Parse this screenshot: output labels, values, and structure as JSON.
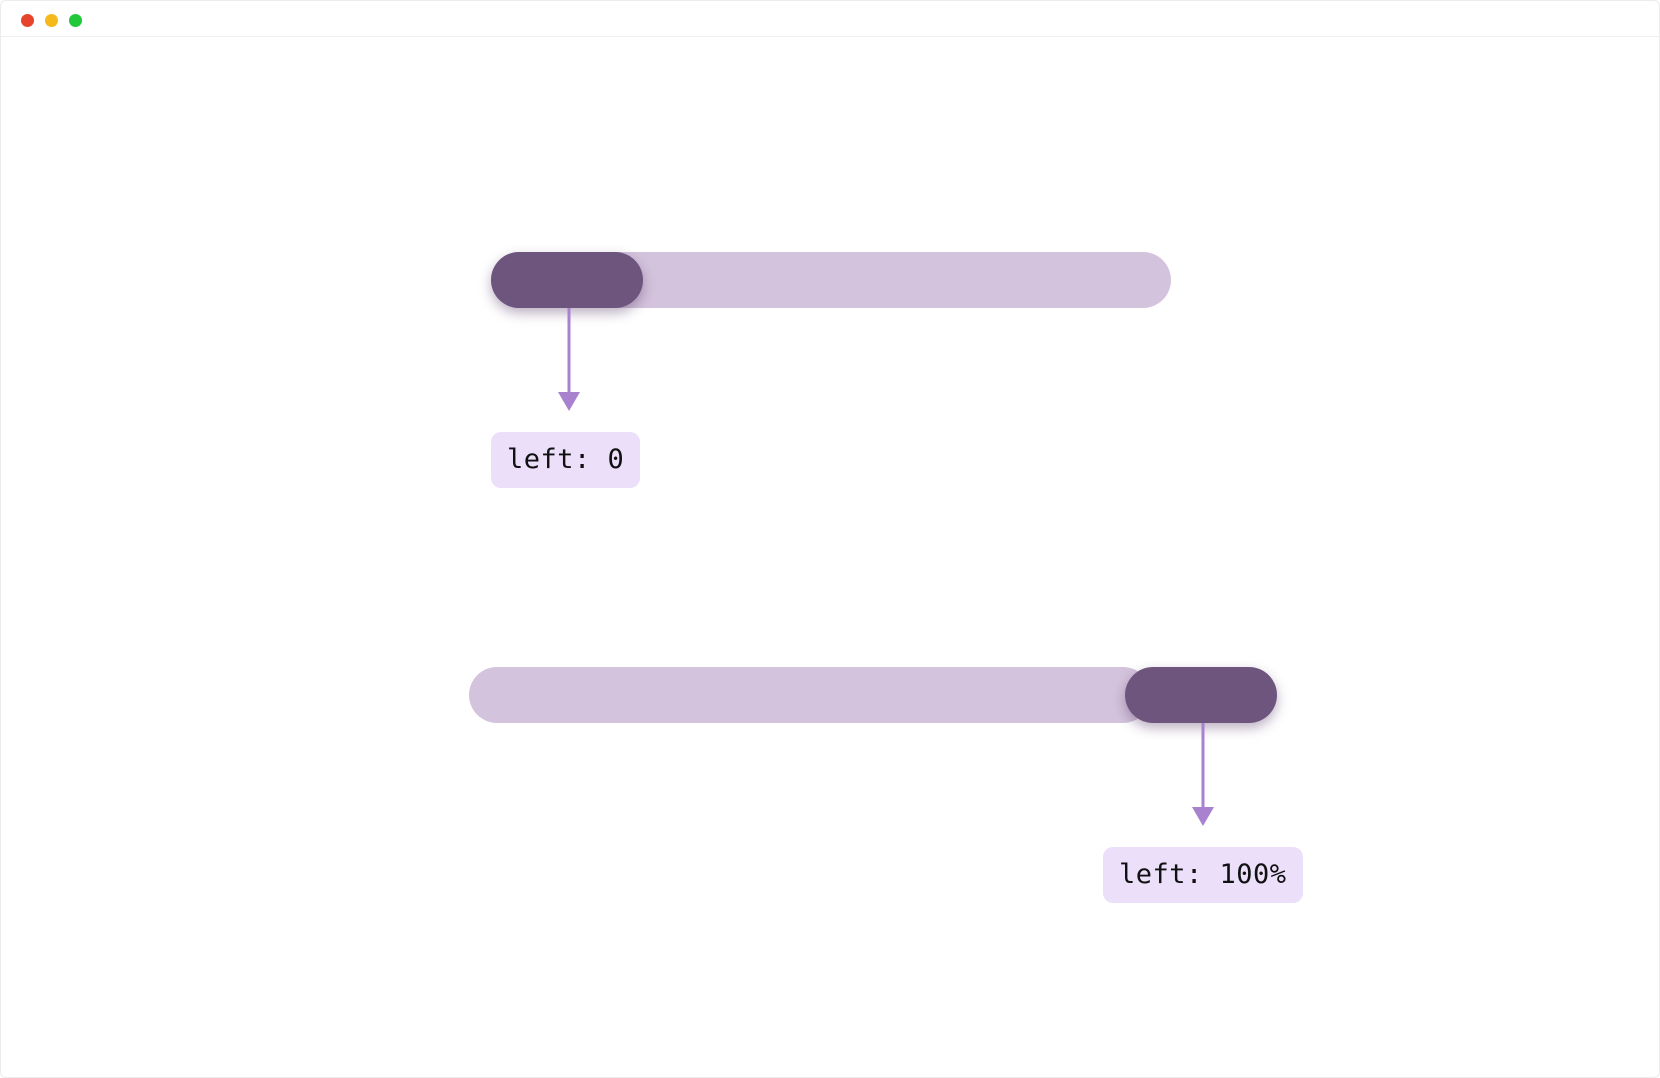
{
  "window": {
    "controls": [
      "close",
      "minimize",
      "maximize"
    ]
  },
  "colors": {
    "track": "#d4c3dc",
    "thumb": "#6e557e",
    "arrow": "#a982cf",
    "label_bg": "#ecdff9"
  },
  "sliders": [
    {
      "thumb_position_percent": 0,
      "label": "left: 0"
    },
    {
      "thumb_position_percent": 100,
      "label": "left: 100%"
    }
  ]
}
